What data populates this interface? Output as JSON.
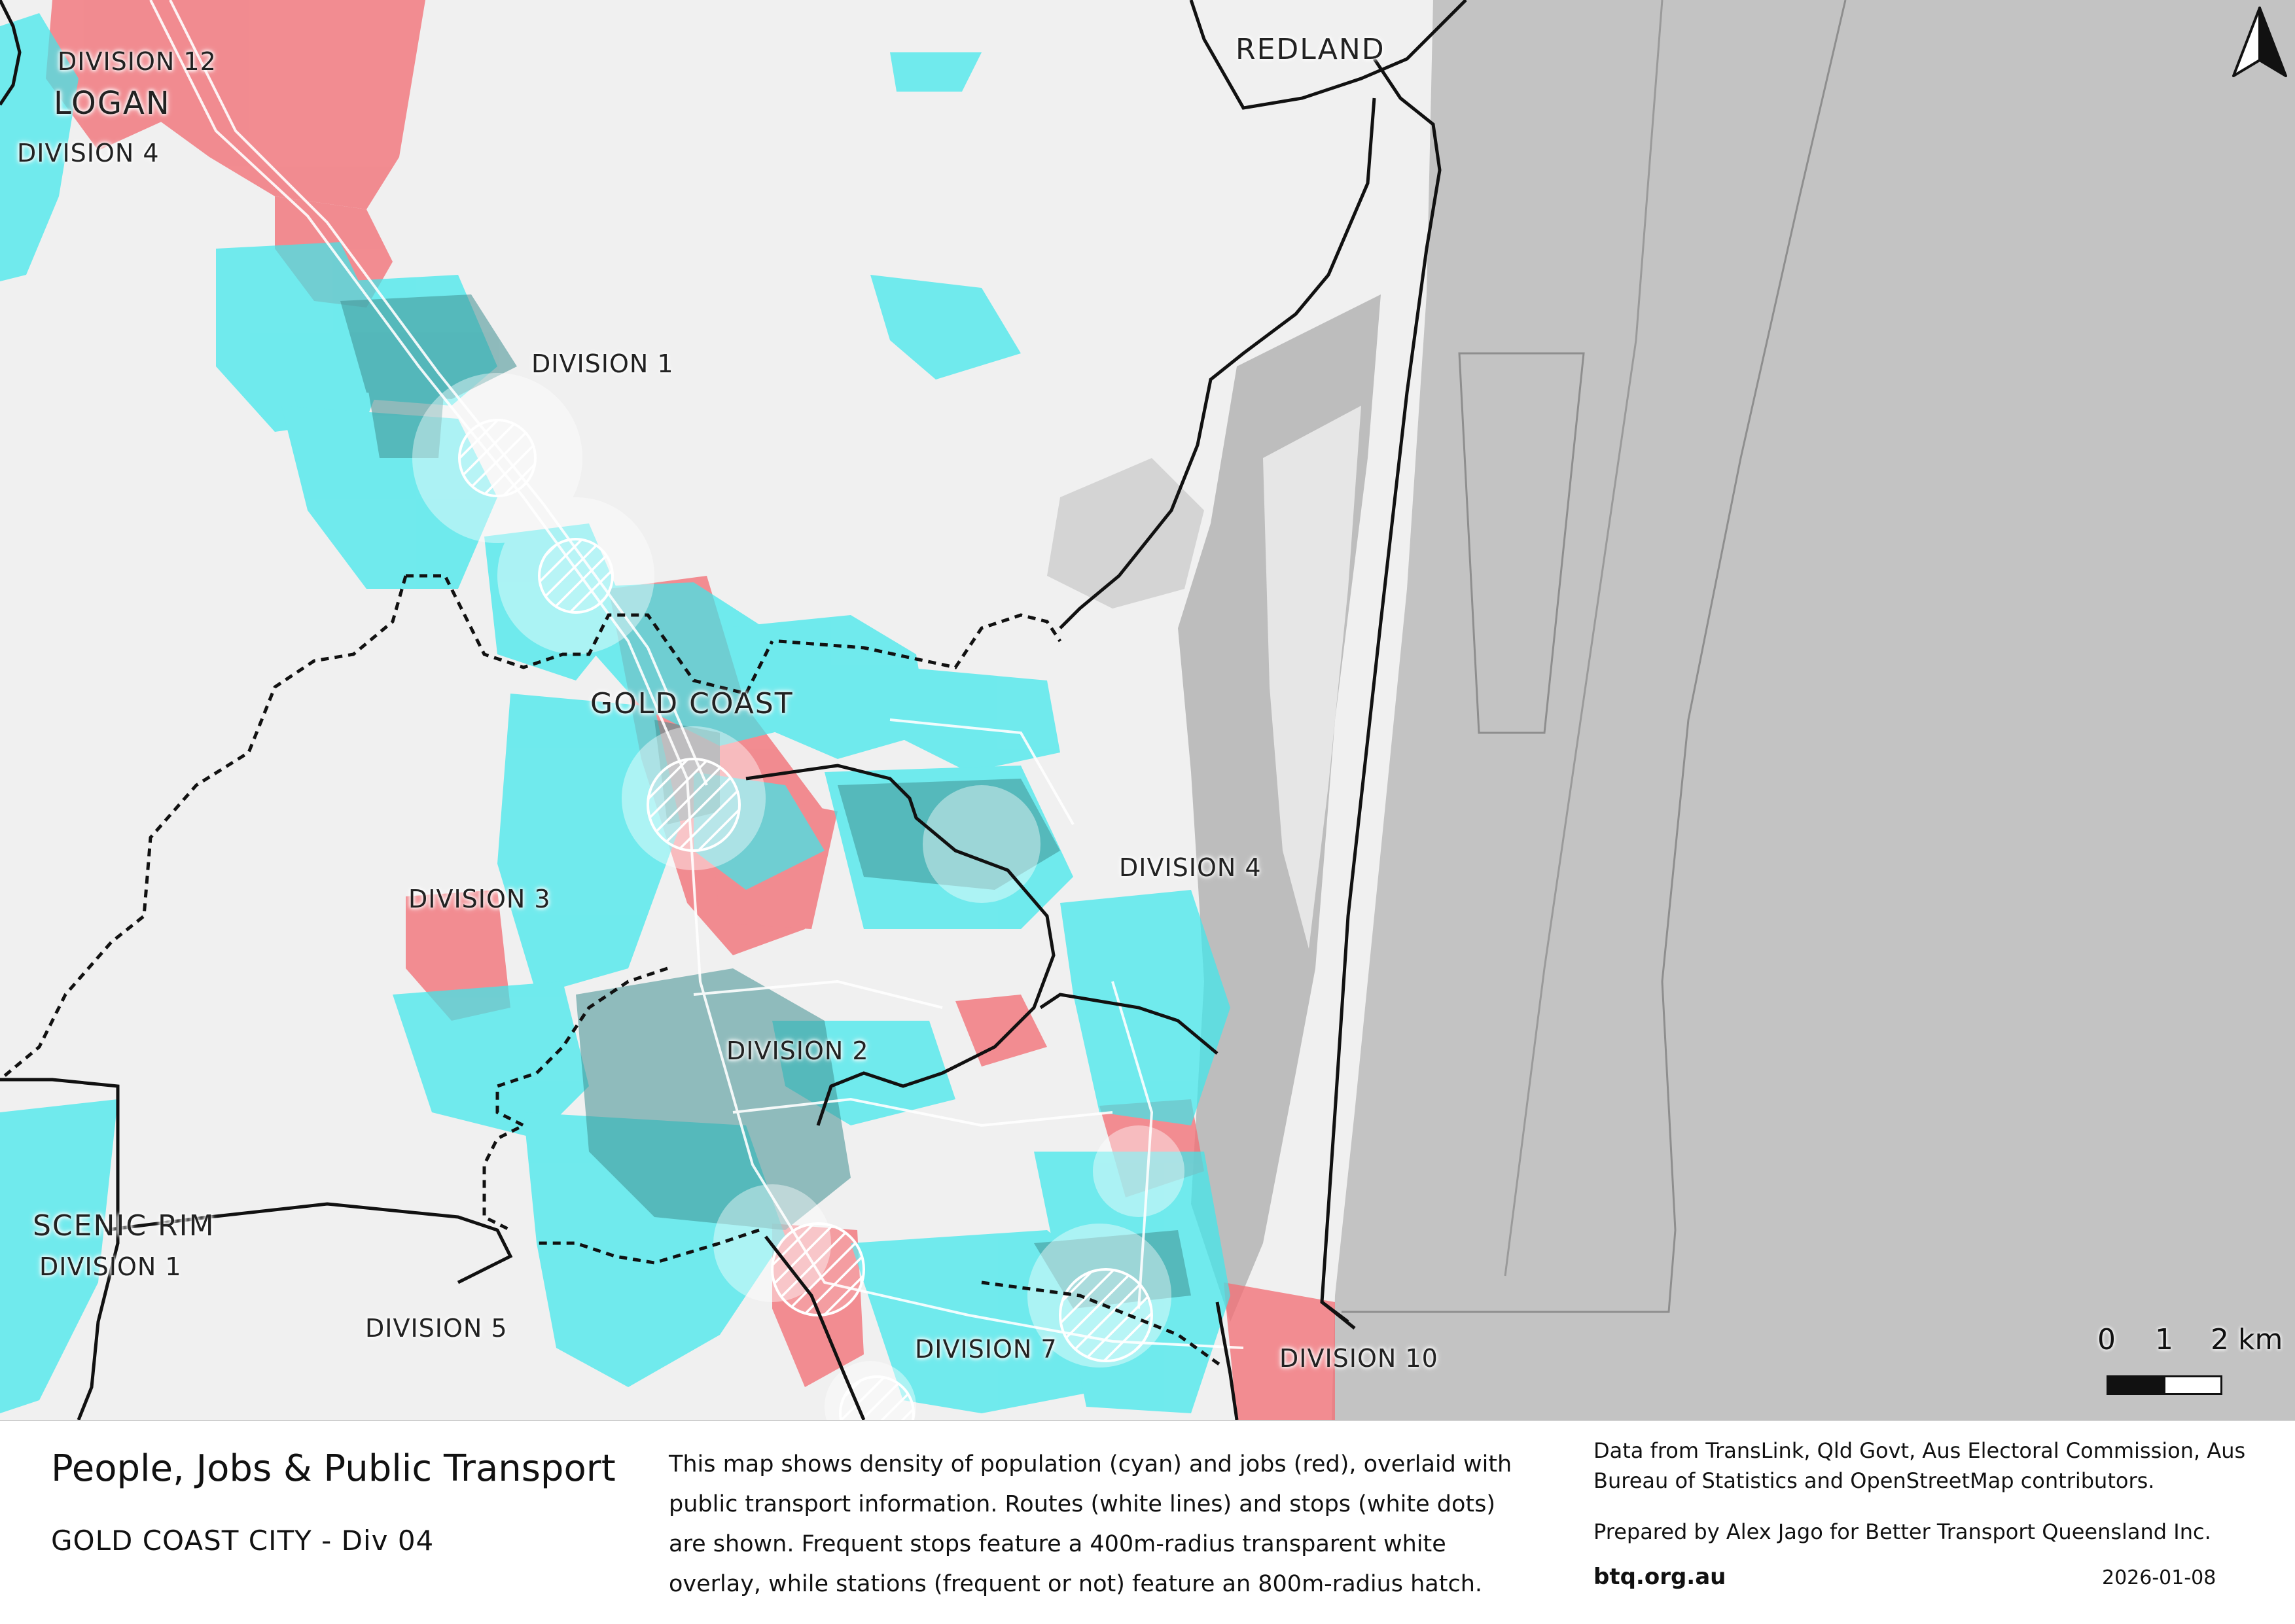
{
  "map": {
    "lga_labels": {
      "redland": "REDLAND",
      "logan": "LOGAN",
      "gold_coast": "GOLD COAST",
      "scenic_rim": "SCENIC RIM"
    },
    "division_labels": {
      "logan_div12": "DIVISION 12",
      "logan_div4": "DIVISION 4",
      "gc_div1": "DIVISION 1",
      "gc_div3": "DIVISION 3",
      "gc_div4": "DIVISION 4",
      "gc_div2": "DIVISION 2",
      "gc_div5": "DIVISION 5",
      "gc_div7": "DIVISION 7",
      "gc_div10": "DIVISION 10",
      "scenic_rim_div1": "DIVISION 1"
    },
    "colors": {
      "population": "#3ee8ec",
      "jobs": "#f26f76",
      "water": "#c3c3c3",
      "land": "#f0f0f0",
      "boundary": "#111111"
    }
  },
  "scale": {
    "ticks": [
      "0",
      "1",
      "2 km"
    ]
  },
  "north_arrow": {
    "icon": "north-arrow-icon"
  },
  "legend": {
    "title": "People, Jobs & Public Transport",
    "subtitle": "GOLD COAST CITY - Div 04",
    "description": "This map shows density of population (cyan) and jobs (red), overlaid with public transport information. Routes (white lines) and stops (white dots) are shown. Frequent stops feature a 400m-radius transparent white overlay, while stations (frequent or not) feature an 800m-radius hatch.",
    "credits": "Data from TransLink,  Qld Govt,  Aus Electoral Commission, Aus Bureau of Statistics and OpenStreetMap contributors.",
    "prepared": "Prepared by Alex Jago for Better Transport Queensland Inc.",
    "website": "btq.org.au",
    "date": "2026-01-08"
  }
}
